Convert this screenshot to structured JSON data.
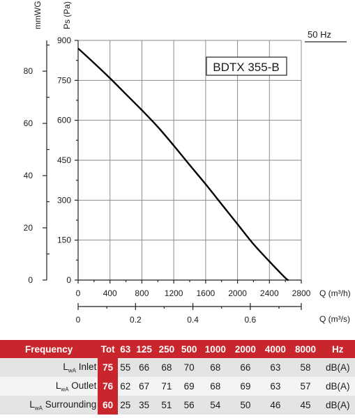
{
  "chart_data": {
    "type": "line",
    "title": "BDTX 355-B",
    "frequency_label": "50 Hz",
    "y_left_label": "mmWG",
    "y_right_label": "Ps (Pa)",
    "x_label": "Q (m³/h)",
    "x2_label": "Q (m³/s)",
    "x_ticks": [
      "0",
      "400",
      "800",
      "1200",
      "1600",
      "2000",
      "2400",
      "2800"
    ],
    "x2_ticks": [
      "0",
      "0.2",
      "0.4",
      "0.6"
    ],
    "y_pa_ticks": [
      "0",
      "150",
      "300",
      "450",
      "600",
      "750",
      "900"
    ],
    "y_mmwg_ticks": [
      "0",
      "20",
      "40",
      "60",
      "80"
    ],
    "xlim": [
      0,
      2800
    ],
    "ylim": [
      0,
      900
    ],
    "grid": true,
    "series": [
      {
        "x": [
          0,
          200,
          400,
          600,
          800,
          1000,
          1200,
          1400,
          1600,
          1800,
          2000,
          2200,
          2400,
          2600,
          2640
        ],
        "values": [
          870,
          815,
          758,
          698,
          638,
          575,
          505,
          432,
          360,
          285,
          210,
          135,
          70,
          8,
          0
        ]
      }
    ]
  },
  "sound_table": {
    "headers": [
      "Frequency",
      "Tot",
      "63",
      "125",
      "250",
      "500",
      "1000",
      "2000",
      "4000",
      "8000",
      "Hz"
    ],
    "rows": [
      {
        "sub": "wA",
        "name": "Inlet",
        "tot": "75",
        "values": [
          "55",
          "66",
          "68",
          "70",
          "68",
          "66",
          "63",
          "58"
        ],
        "unit": "dB(A)"
      },
      {
        "sub": "wA",
        "name": "Outlet",
        "tot": "76",
        "values": [
          "62",
          "67",
          "71",
          "69",
          "68",
          "69",
          "63",
          "57"
        ],
        "unit": "dB(A)"
      },
      {
        "sub": "wA",
        "name": "Surrounding",
        "tot": "60",
        "values": [
          "25",
          "35",
          "51",
          "56",
          "54",
          "50",
          "46",
          "45"
        ],
        "unit": "dB(A)"
      }
    ],
    "l_letter": "L"
  }
}
